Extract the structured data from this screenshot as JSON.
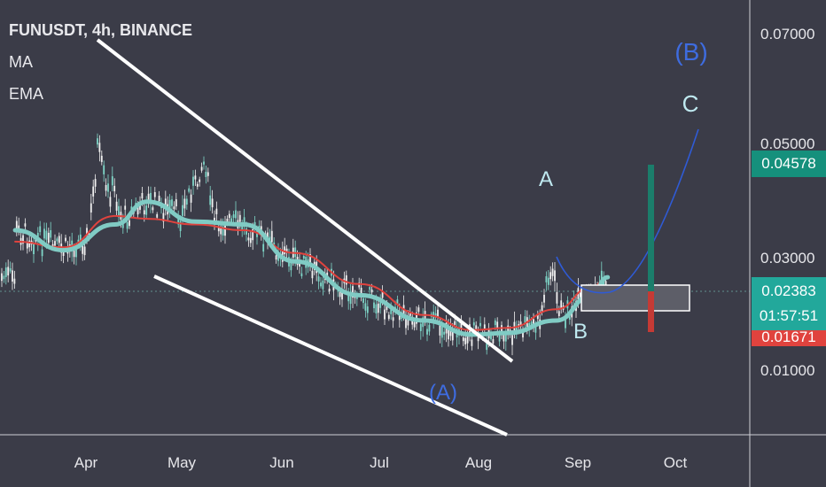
{
  "header": {
    "title": "FUNUSDT, 4h, BINANCE",
    "ma_label": "MA",
    "ema_label": "EMA"
  },
  "price_tags": {
    "top": "0.04578",
    "current": "0.02383",
    "countdown": "01:57:51",
    "red_partial": "0.01671"
  },
  "colors": {
    "background": "#3b3c48",
    "candle_up": "#7fd6c8",
    "candle_down": "#f1f1f1",
    "ma": "#80cbc4",
    "ema": "#e0433e",
    "trendline": "#ffffff",
    "projection": "#2f5bd6",
    "label_blue": "#3e6ce0",
    "label_light": "#bfe9f0",
    "tag_green": "#15907c",
    "tag_teal": "#22a89b",
    "tag_red": "#e0433e",
    "target_green": "#1b7d6b",
    "target_red": "#c53a35"
  },
  "chart_data": {
    "type": "line",
    "title": "FUNUSDT, 4h, BINANCE",
    "xlabel": "",
    "ylabel": "",
    "x_ticks": [
      "Apr",
      "May",
      "Jun",
      "Jul",
      "Aug",
      "Sep",
      "Oct"
    ],
    "y_ticks": [
      "0.07000",
      "0.05000",
      "0.03000",
      "0.01000"
    ],
    "ylim": [
      0.0,
      0.075
    ],
    "grid": false,
    "legend_position": "top-left",
    "series": [
      {
        "name": "MA",
        "x": [
          "2021-03-10",
          "2021-03-25",
          "2021-04-10",
          "2021-04-20",
          "2021-05-05",
          "2021-05-20",
          "2021-06-05",
          "2021-06-25",
          "2021-07-15",
          "2021-07-30",
          "2021-08-10",
          "2021-08-25",
          "2021-09-05",
          "2021-09-10"
        ],
        "y": [
          0.0345,
          0.031,
          0.0355,
          0.0395,
          0.036,
          0.0355,
          0.029,
          0.023,
          0.0185,
          0.016,
          0.0163,
          0.0185,
          0.023,
          0.0262
        ]
      },
      {
        "name": "EMA",
        "x": [
          "2021-03-10",
          "2021-03-25",
          "2021-04-10",
          "2021-04-20",
          "2021-05-05",
          "2021-05-20",
          "2021-06-05",
          "2021-06-25",
          "2021-07-15",
          "2021-07-30",
          "2021-08-10",
          "2021-08-25",
          "2021-09-05",
          "2021-09-10"
        ],
        "y": [
          0.0325,
          0.0315,
          0.037,
          0.0365,
          0.0355,
          0.0345,
          0.0305,
          0.025,
          0.0195,
          0.0168,
          0.0172,
          0.0205,
          0.0245,
          0.026
        ]
      }
    ],
    "annotations": [
      {
        "text": "(A)",
        "x": "2021-07-25",
        "y": 0.005
      },
      {
        "text": "A",
        "x": "2021-08-24",
        "y": 0.0515
      },
      {
        "text": "B",
        "x": "2021-09-01",
        "y": 0.0165
      },
      {
        "text": "(B)",
        "x": "2021-09-27",
        "y": 0.0695
      },
      {
        "text": "C",
        "x": "2021-09-27",
        "y": 0.0597
      }
    ]
  }
}
